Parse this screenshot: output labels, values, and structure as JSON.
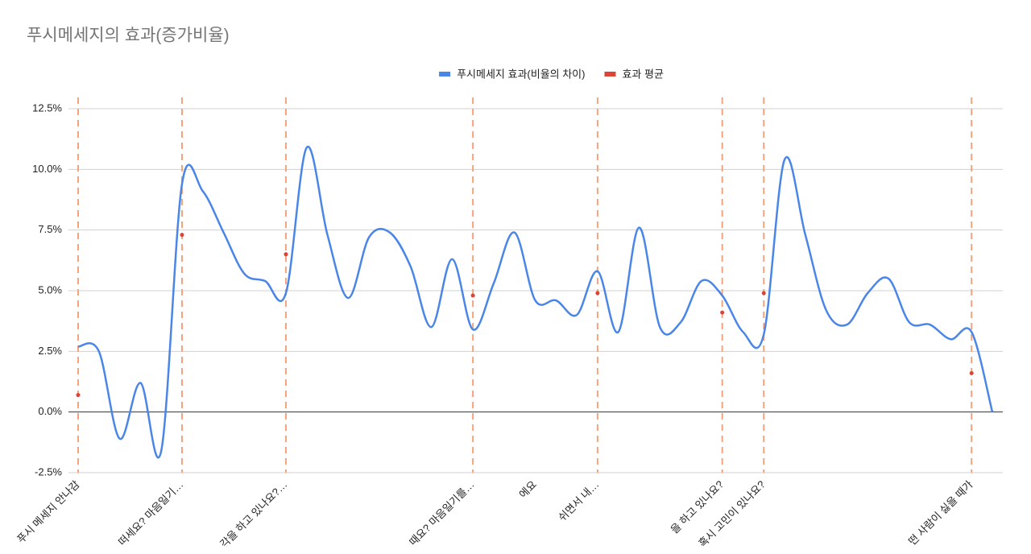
{
  "chart_data": {
    "type": "line",
    "title": "푸시메세지의 효과(증가비율)",
    "categories": [
      "푸시 메세지 안나감",
      null,
      null,
      null,
      null,
      "떠세요? 마음일기…",
      null,
      null,
      null,
      null,
      "각을 하고 있나요?…",
      null,
      null,
      null,
      null,
      null,
      null,
      null,
      null,
      "때요? 마음일기를…",
      null,
      null,
      "에요",
      null,
      null,
      "쉬면서 내…",
      null,
      null,
      null,
      null,
      null,
      "을 하고 있나요?",
      null,
      "혹시 고민이 있나요?",
      null,
      null,
      null,
      null,
      null,
      null,
      null,
      null,
      null,
      "떤 사람이 싫을 때가",
      null
    ],
    "series": [
      {
        "name": "푸시메세지 효과(비율의 차이)",
        "color": "#4a86e8",
        "style": "smooth-line",
        "values": [
          2.7,
          2.5,
          -1.1,
          1.2,
          -1.6,
          9.4,
          9.1,
          7.4,
          5.7,
          5.4,
          4.9,
          10.9,
          7.3,
          4.7,
          7.2,
          7.4,
          6.0,
          3.5,
          6.3,
          3.4,
          5.3,
          7.4,
          4.6,
          4.6,
          4.0,
          5.8,
          3.3,
          7.6,
          3.5,
          3.7,
          5.4,
          4.8,
          3.3,
          3.2,
          10.4,
          7.3,
          4.2,
          3.6,
          4.9,
          5.5,
          3.7,
          3.6,
          3.0,
          3.3,
          0.0
        ]
      },
      {
        "name": "효과 평균",
        "color": "#db4437",
        "style": "dots",
        "values": [
          0.7,
          null,
          null,
          null,
          null,
          7.3,
          null,
          null,
          null,
          null,
          6.5,
          null,
          null,
          null,
          null,
          null,
          null,
          null,
          null,
          4.8,
          null,
          null,
          null,
          null,
          null,
          4.9,
          null,
          null,
          null,
          null,
          null,
          4.1,
          null,
          4.9,
          null,
          null,
          null,
          null,
          null,
          null,
          null,
          null,
          null,
          1.6,
          null
        ]
      }
    ],
    "ylim": [
      -2.5,
      12.5
    ],
    "yticks": [
      {
        "value": -2.5,
        "label": "-2.5%"
      },
      {
        "value": 0,
        "label": "0.0%"
      },
      {
        "value": 2.5,
        "label": "2.5%"
      },
      {
        "value": 5,
        "label": "5.0%"
      },
      {
        "value": 7.5,
        "label": "7.5%"
      },
      {
        "value": 10,
        "label": "10.0%"
      },
      {
        "value": 12.5,
        "label": "12.5%"
      }
    ],
    "grid": true,
    "legend": "top"
  }
}
